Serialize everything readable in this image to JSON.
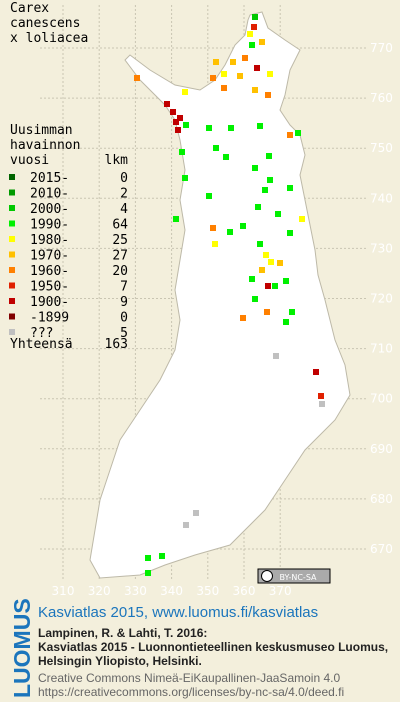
{
  "map": {
    "title": [
      "Carex",
      "canescens",
      "x loliacea"
    ],
    "legend": {
      "header": [
        "Uusimman",
        "havainnon",
        "vuosi"
      ],
      "count_header": "lkm",
      "items": [
        {
          "label": "2015-",
          "count": 0,
          "color": "#006400"
        },
        {
          "label": "2010-",
          "count": 2,
          "color": "#009a00"
        },
        {
          "label": "2000-",
          "count": 4,
          "color": "#00c800"
        },
        {
          "label": "1990-",
          "count": 64,
          "color": "#00f000"
        },
        {
          "label": "1980-",
          "count": 25,
          "color": "#ffff00"
        },
        {
          "label": "1970-",
          "count": 27,
          "color": "#ffc000"
        },
        {
          "label": "1960-",
          "count": 20,
          "color": "#ff8000"
        },
        {
          "label": "1950-",
          "count": 7,
          "color": "#e02000"
        },
        {
          "label": "1900-",
          "count": 9,
          "color": "#c00000"
        },
        {
          "label": "-1899",
          "count": 0,
          "color": "#800000"
        },
        {
          "label": "???",
          "count": 5,
          "color": "#c0c0c0"
        }
      ],
      "total_label": "Yhteensä",
      "total": 163
    },
    "xticks": [
      310,
      320,
      330,
      340,
      350,
      360,
      370
    ],
    "yticks": [
      670,
      680,
      690,
      700,
      710,
      720,
      730,
      740,
      750,
      760,
      770
    ],
    "badge": "BY-NC-SA",
    "footer": {
      "logo": "LUOMUS",
      "link": "Kasviatlas 2015, www.luomus.fi/kasviatlas",
      "citation": [
        "Lampinen, R. & Lahti, T. 2016:",
        "Kasviatlas 2015 - Luonnontieteellinen keskusmuseo Luomus,",
        "Helsingin Yliopisto, Helsinki."
      ],
      "license": [
        "Creative Commons Nimeä-EiKaupallinen-JaaSamoin 4.0",
        "https://creativecommons.org/licenses/by-nc-sa/4.0/deed.fi"
      ]
    }
  }
}
